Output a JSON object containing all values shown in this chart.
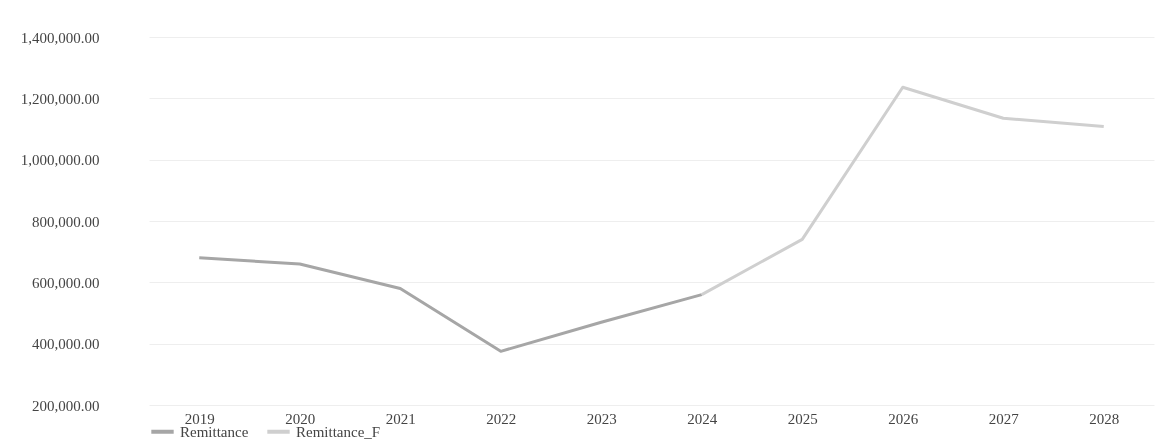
{
  "chart_data": {
    "type": "line",
    "categories": [
      "2019",
      "2020",
      "2021",
      "2022",
      "2023",
      "2024",
      "2025",
      "2026",
      "2027",
      "2028"
    ],
    "series": [
      {
        "name": "Remittance",
        "color": "#a6a6a6",
        "values": [
          680000,
          660000,
          580000,
          375000,
          470000,
          560000,
          null,
          null,
          null,
          null
        ]
      },
      {
        "name": "Remittance_F",
        "color": "#cfcfcf",
        "values": [
          null,
          null,
          null,
          null,
          null,
          560000,
          740000,
          1236000,
          1135000,
          1108000
        ]
      }
    ],
    "ylim": [
      200000,
      1400000
    ],
    "yticks": [
      {
        "value": 200000,
        "label": "200,000.00"
      },
      {
        "value": 400000,
        "label": "400,000.00"
      },
      {
        "value": 600000,
        "label": "600,000.00"
      },
      {
        "value": 800000,
        "label": "800,000.00"
      },
      {
        "value": 1000000,
        "label": "1,000,000.00"
      },
      {
        "value": 1200000,
        "label": "1,200,000.00"
      },
      {
        "value": 1400000,
        "label": "1,400,000.00"
      }
    ],
    "grid": "y",
    "legend": "bottom",
    "marker": "none",
    "line_style": "solid"
  }
}
